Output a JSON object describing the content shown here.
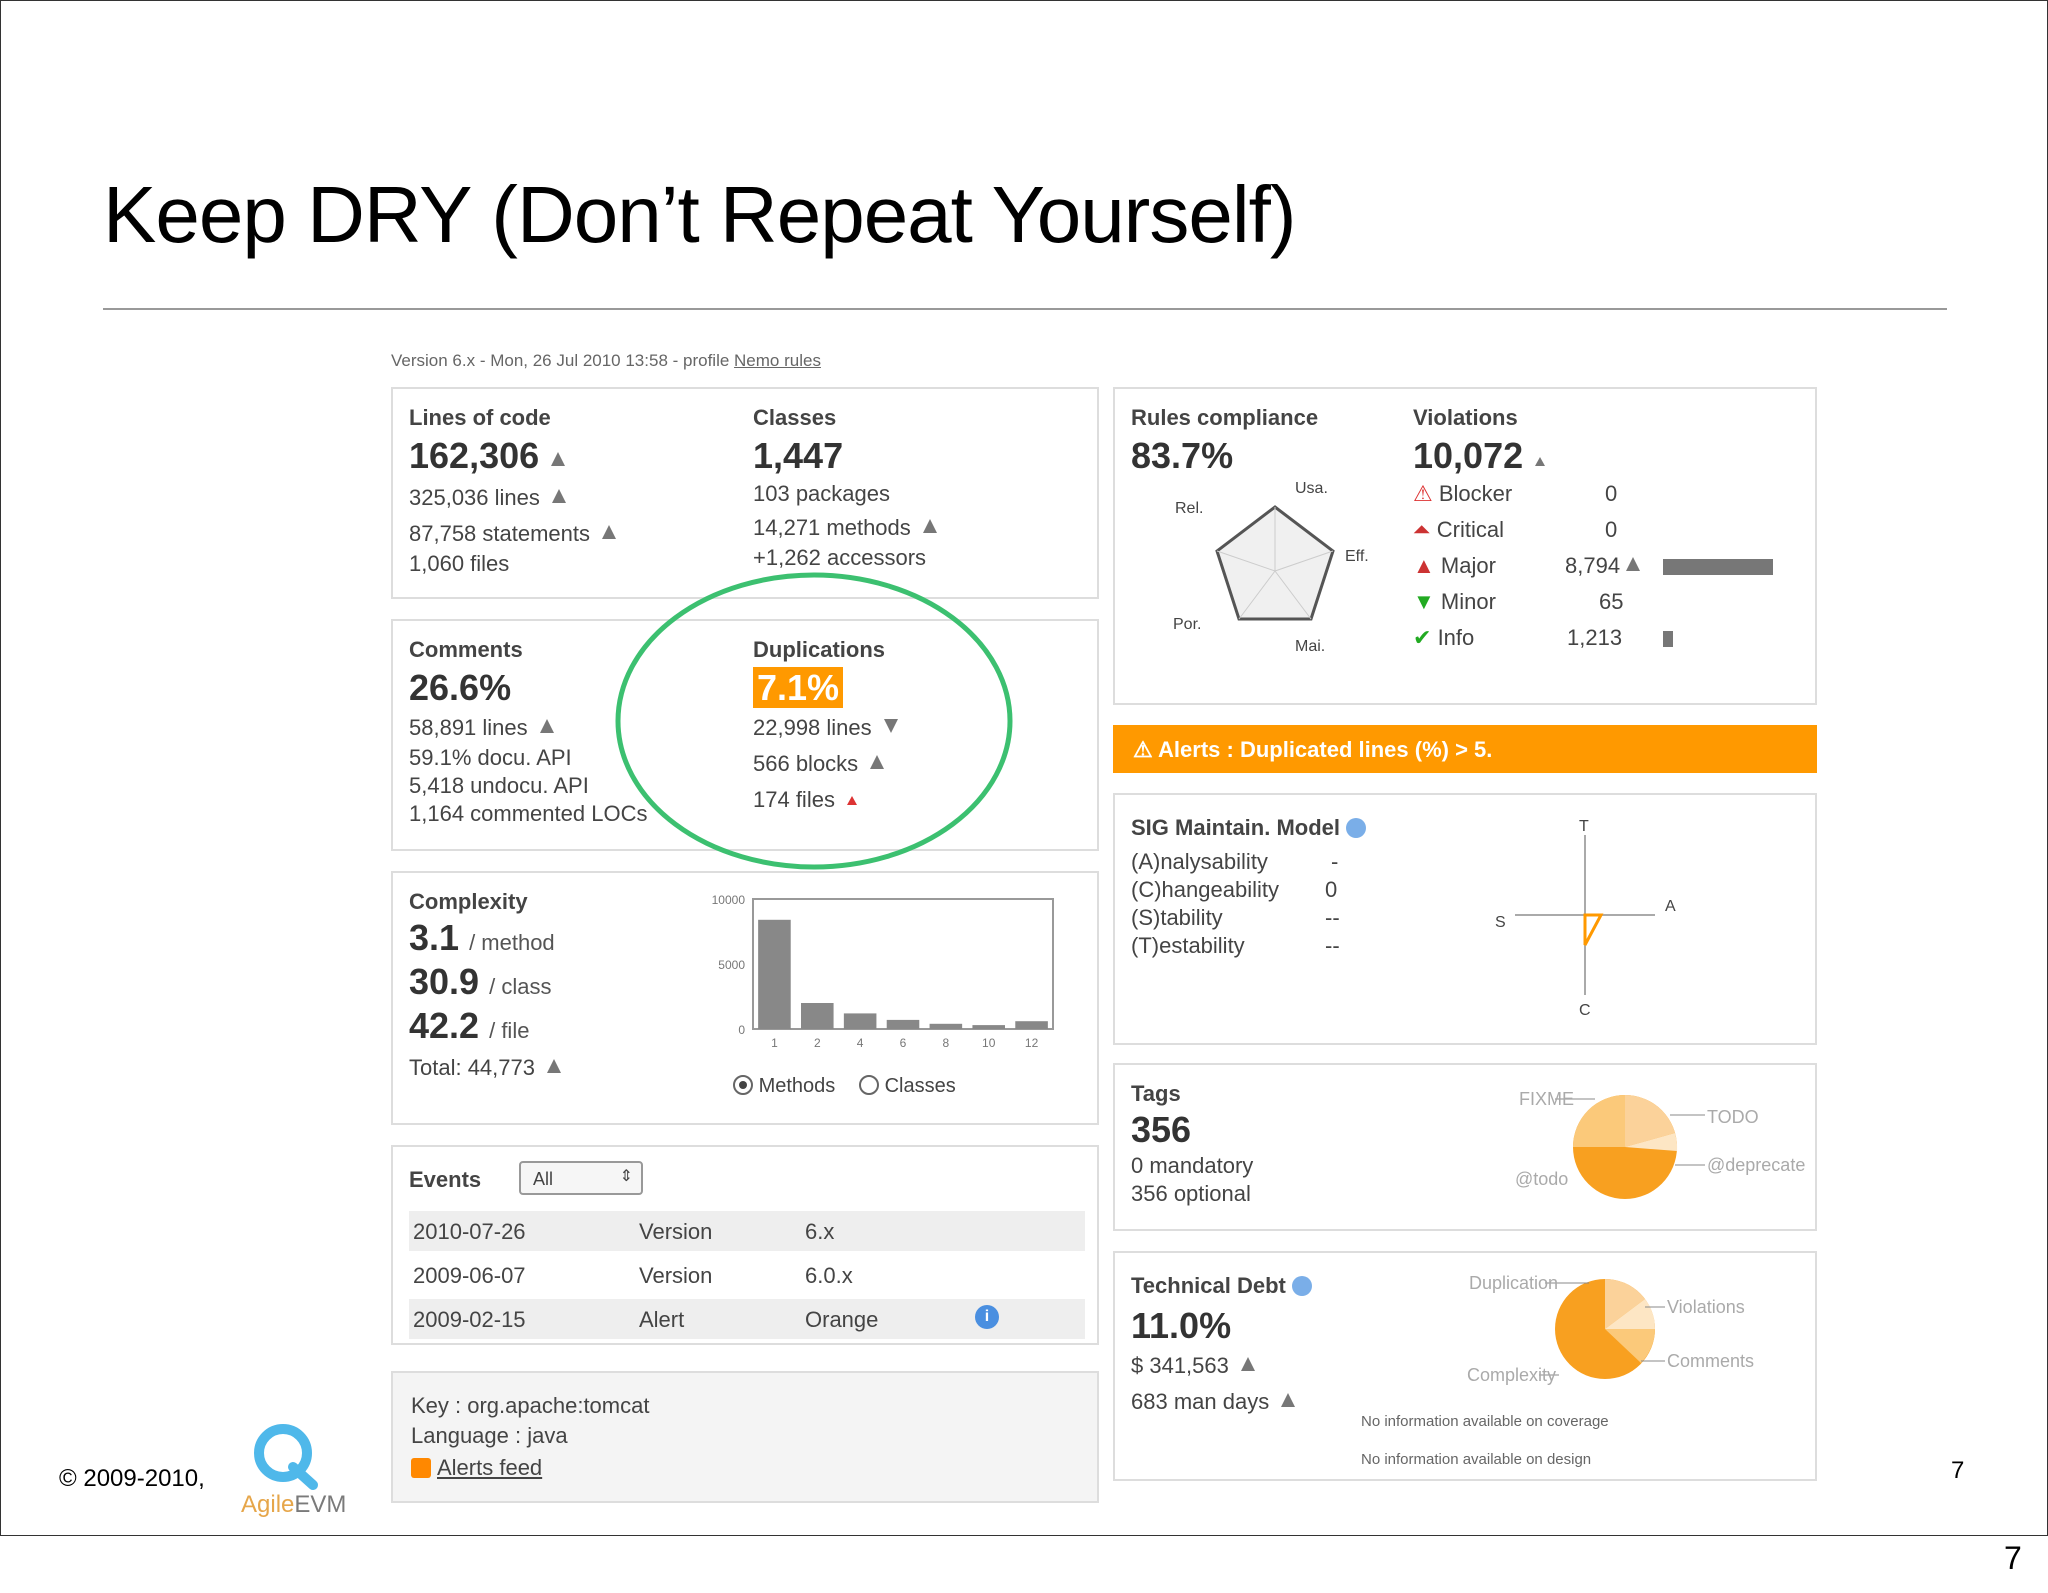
{
  "slide": {
    "title": "Keep DRY (Don’t Repeat Yourself)",
    "copyright": "© 2009-2010,",
    "logo_name_part1": "Agile",
    "logo_name_part2": "EVM",
    "page_number_inner": "7",
    "page_number_outer": "7"
  },
  "dashboard": {
    "version_line": "Version 6.x - Mon, 26 Jul 2010 13:58 - profile ",
    "profile_link": "Nemo rules",
    "lines_of_code": {
      "label": "Lines of code",
      "value": "162,306",
      "lines": "325,036 lines",
      "statements": "87,758 statements",
      "files": "1,060 files"
    },
    "classes": {
      "label": "Classes",
      "value": "1,447",
      "packages": "103 packages",
      "methods": "14,271 methods",
      "accessors": "+1,262 accessors"
    },
    "comments": {
      "label": "Comments",
      "value": "26.6%",
      "lines": "58,891 lines",
      "docu_api": "59.1% docu. API",
      "undocu_api": "5,418 undocu. API",
      "commented_loc": "1,164 commented LOCs"
    },
    "duplications": {
      "label": "Duplications",
      "value": "7.1%",
      "lines": "22,998 lines",
      "blocks": "566 blocks",
      "files": "174 files"
    },
    "complexity": {
      "label": "Complexity",
      "per_method": "3.1",
      "per_method_unit": "/ method",
      "per_class": "30.9",
      "per_class_unit": "/ class",
      "per_file": "42.2",
      "per_file_unit": "/ file",
      "total": "Total: 44,773",
      "radio_methods": "Methods",
      "radio_classes": "Classes",
      "chart_data": {
        "type": "bar",
        "categories": [
          "1",
          "2",
          "4",
          "6",
          "8",
          "10",
          "12"
        ],
        "values": [
          8400,
          2000,
          1200,
          700,
          400,
          300,
          600
        ],
        "yticks": [
          "10000",
          "5000",
          "0"
        ],
        "ylim": [
          0,
          10000
        ]
      }
    },
    "events": {
      "label": "Events",
      "filter_value": "All",
      "rows": [
        {
          "date": "2010-07-26",
          "type": "Version",
          "name": "6.x"
        },
        {
          "date": "2009-06-07",
          "type": "Version",
          "name": "6.0.x"
        },
        {
          "date": "2009-02-15",
          "type": "Alert",
          "name": "Orange"
        }
      ]
    },
    "project": {
      "key": "Key : org.apache:tomcat",
      "language": "Language : java",
      "feed": "Alerts feed"
    },
    "rules_compliance": {
      "label": "Rules compliance",
      "value": "83.7%",
      "axes": [
        "Usa.",
        "Eff.",
        "Mai.",
        "Por.",
        "Rel."
      ]
    },
    "violations": {
      "label": "Violations",
      "value": "10,072",
      "items": [
        {
          "name": "Blocker",
          "count": "0"
        },
        {
          "name": "Critical",
          "count": "0"
        },
        {
          "name": "Major",
          "count": "8,794"
        },
        {
          "name": "Minor",
          "count": "65"
        },
        {
          "name": "Info",
          "count": "1,213"
        }
      ]
    },
    "alert": "Alerts : Duplicated lines (%) > 5.",
    "sig": {
      "label": "SIG Maintain. Model",
      "rows": [
        {
          "name": "(A)nalysability",
          "value": "-"
        },
        {
          "name": "(C)hangeability",
          "value": "0"
        },
        {
          "name": "(S)tability",
          "value": "--"
        },
        {
          "name": "(T)estability",
          "value": "--"
        }
      ],
      "axis_t": "T",
      "axis_a": "A",
      "axis_s": "S",
      "axis_c": "C"
    },
    "tags": {
      "label": "Tags",
      "value": "356",
      "mandatory": "0 mandatory",
      "optional": "356 optional",
      "pie_labels": [
        "FIXME",
        "TODO",
        "@deprecate",
        "@todo"
      ]
    },
    "tech_debt": {
      "label": "Technical Debt",
      "value": "11.0%",
      "cost": "$ 341,563",
      "man_days": "683 man days",
      "pie_labels": [
        "Duplication",
        "Violations",
        "Comments",
        "Complexity"
      ],
      "no_coverage": "No information available on coverage",
      "no_design": "No information available on design"
    }
  },
  "colors": {
    "accent_orange": "#ff9900",
    "circle_green": "#3cc070",
    "bar_gray": "#888888"
  }
}
